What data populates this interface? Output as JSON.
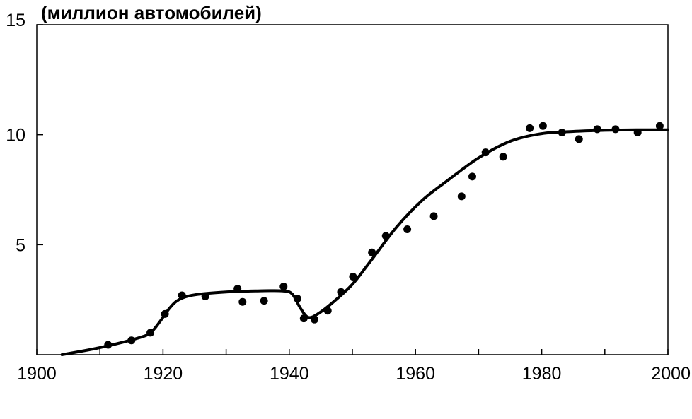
{
  "chart_data": {
    "type": "scatter",
    "title": "(миллион автомобилей)",
    "xlabel": "",
    "ylabel": "",
    "xlim": [
      1900,
      2000
    ],
    "ylim": [
      0,
      15
    ],
    "x_ticks": [
      1900,
      1920,
      1940,
      1960,
      1980,
      2000
    ],
    "x_minor_ticks": [
      1910,
      1930,
      1950,
      1970,
      1990
    ],
    "y_ticks": [
      5,
      10,
      15
    ],
    "grid": false,
    "legend": "none",
    "series": [
      {
        "kind": "points",
        "points": [
          [
            1911.3,
            0.45
          ],
          [
            1915.0,
            0.65
          ],
          [
            1918.0,
            1.0
          ],
          [
            1920.3,
            1.85
          ],
          [
            1923.0,
            2.7
          ],
          [
            1926.7,
            2.65
          ],
          [
            1931.8,
            3.0
          ],
          [
            1932.6,
            2.4
          ],
          [
            1936.0,
            2.45
          ],
          [
            1939.1,
            3.1
          ],
          [
            1941.3,
            2.55
          ],
          [
            1942.3,
            1.65
          ],
          [
            1944.0,
            1.6
          ],
          [
            1946.1,
            2.0
          ],
          [
            1948.2,
            2.85
          ],
          [
            1950.1,
            3.55
          ],
          [
            1953.1,
            4.65
          ],
          [
            1955.3,
            5.4
          ],
          [
            1958.7,
            5.7
          ],
          [
            1962.9,
            6.3
          ],
          [
            1967.3,
            7.2
          ],
          [
            1969.0,
            8.1
          ],
          [
            1971.1,
            9.2
          ],
          [
            1973.9,
            9.0
          ],
          [
            1978.1,
            10.3
          ],
          [
            1980.2,
            10.4
          ],
          [
            1983.2,
            10.1
          ],
          [
            1985.9,
            9.8
          ],
          [
            1988.8,
            10.25
          ],
          [
            1991.7,
            10.25
          ],
          [
            1995.2,
            10.1
          ],
          [
            1998.7,
            10.4
          ]
        ]
      },
      {
        "kind": "line",
        "points": [
          [
            1904,
            0.0
          ],
          [
            1910,
            0.32
          ],
          [
            1916,
            0.75
          ],
          [
            1918,
            1.0
          ],
          [
            1919.5,
            1.5
          ],
          [
            1921,
            2.1
          ],
          [
            1922.5,
            2.5
          ],
          [
            1925,
            2.72
          ],
          [
            1930,
            2.85
          ],
          [
            1935,
            2.9
          ],
          [
            1939,
            2.9
          ],
          [
            1940.5,
            2.75
          ],
          [
            1941.8,
            2.1
          ],
          [
            1943,
            1.7
          ],
          [
            1944.5,
            1.85
          ],
          [
            1947,
            2.4
          ],
          [
            1950,
            3.2
          ],
          [
            1953,
            4.3
          ],
          [
            1957,
            5.8
          ],
          [
            1961,
            7.0
          ],
          [
            1965,
            7.9
          ],
          [
            1970,
            8.95
          ],
          [
            1975,
            9.7
          ],
          [
            1980,
            10.05
          ],
          [
            1985,
            10.15
          ],
          [
            1990,
            10.2
          ],
          [
            1995,
            10.22
          ],
          [
            2000,
            10.22
          ]
        ]
      }
    ]
  }
}
